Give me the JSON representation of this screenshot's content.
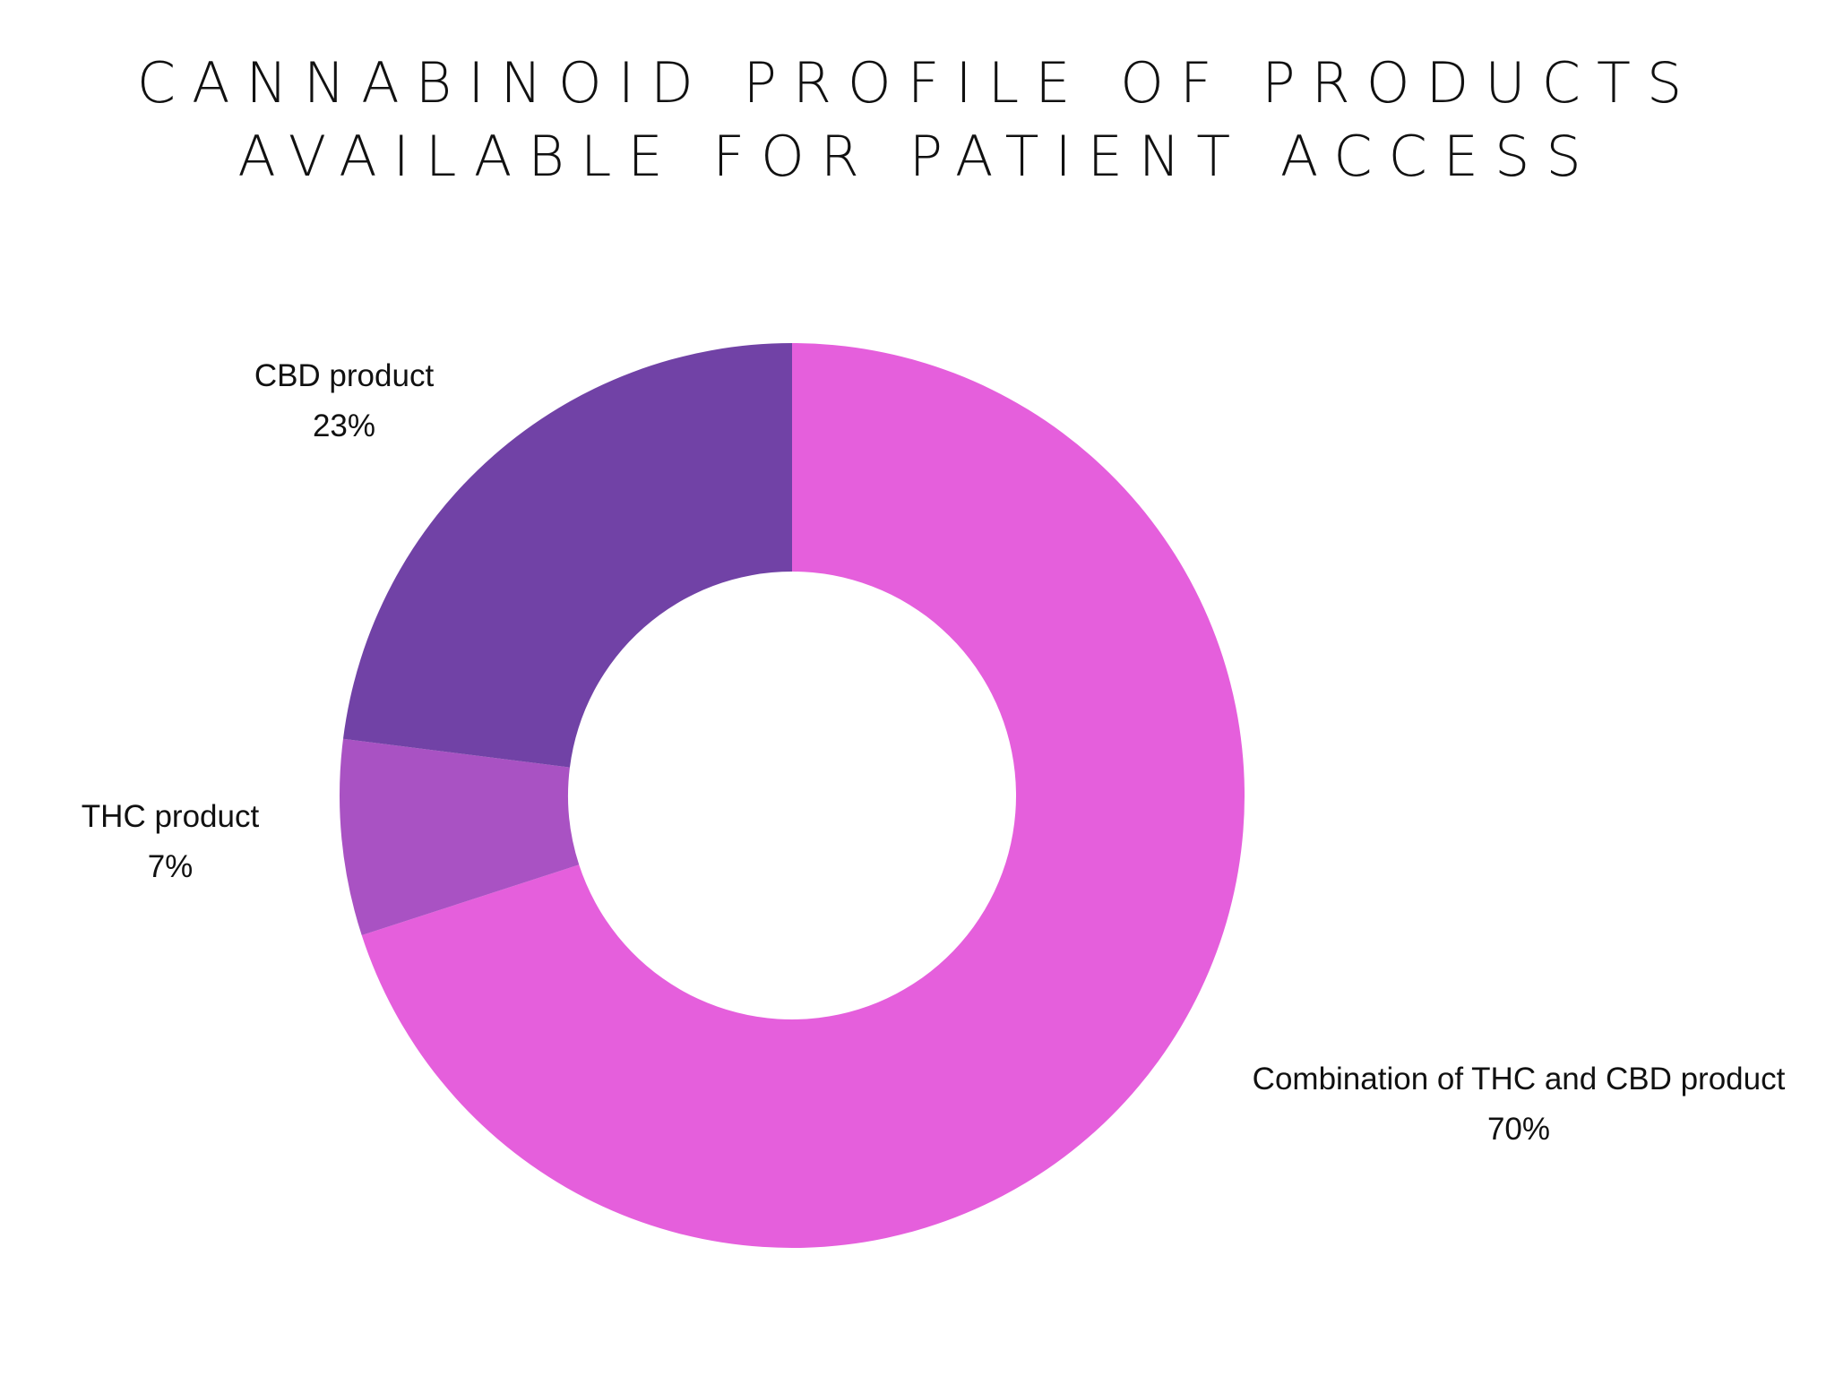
{
  "chart_data": {
    "type": "pie",
    "title": [
      "CANNABINOID PROFILE OF PRODUCTS",
      "AVAILABLE FOR PATIENT ACCESS"
    ],
    "donut": true,
    "slices": [
      {
        "label": "Combination of THC and CBD product",
        "value": 70,
        "display": "70%",
        "color": "#e55fdc"
      },
      {
        "label": "THC product",
        "value": 7,
        "display": "7%",
        "color": "#a952c3"
      },
      {
        "label": "CBD product",
        "value": 23,
        "display": "23%",
        "color": "#7142a6"
      }
    ]
  }
}
